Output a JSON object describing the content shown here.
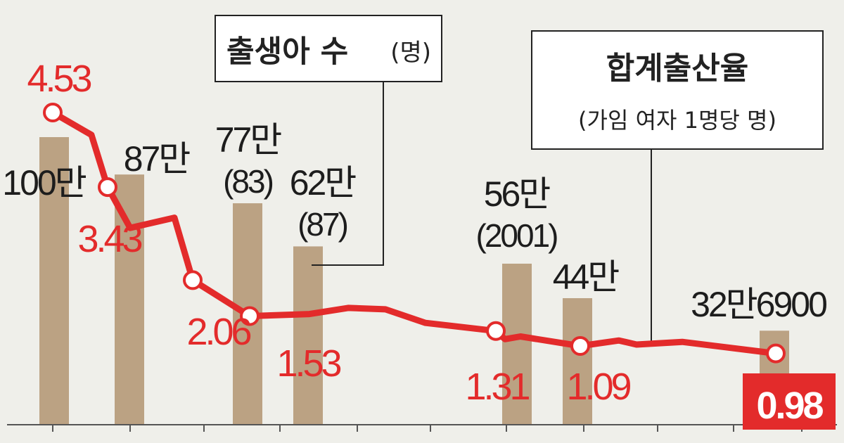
{
  "chart_data": {
    "type": "bar",
    "legend_births": {
      "title": "출생아 수",
      "unit": "(명)"
    },
    "legend_tfr": {
      "title": "합계출산율",
      "unit": "(가임 여자 1명당 명)"
    },
    "births_series": {
      "values": [
        1000000,
        870000,
        770000,
        620000,
        560000,
        440000,
        326900
      ],
      "labels": [
        {
          "main": "100만",
          "sub": ""
        },
        {
          "main": "87만",
          "sub": ""
        },
        {
          "main": "77만",
          "sub": "(83)"
        },
        {
          "main": "62만",
          "sub": "(87)"
        },
        {
          "main": "56만",
          "sub": "(2001)"
        },
        {
          "main": "44만",
          "sub": ""
        },
        {
          "main": "32만6900",
          "sub": ""
        }
      ],
      "color": "#bba283"
    },
    "tfr_series": {
      "values": [
        4.53,
        4.2,
        3.43,
        2.83,
        2.98,
        2.06,
        1.53,
        1.56,
        1.65,
        1.63,
        1.43,
        1.31,
        1.19,
        1.23,
        1.09,
        1.17,
        1.11,
        1.15,
        0.98
      ],
      "labeled": [
        {
          "index": 0,
          "label": "4.53"
        },
        {
          "index": 2,
          "label": "3.43"
        },
        {
          "index": 5,
          "label": "2.06"
        },
        {
          "index": 6,
          "label": "1.53"
        },
        {
          "index": 11,
          "label": "1.31"
        },
        {
          "index": 14,
          "label": "1.09"
        },
        {
          "index": 18,
          "label": "0.98"
        }
      ],
      "color": "#e32b2b"
    }
  }
}
